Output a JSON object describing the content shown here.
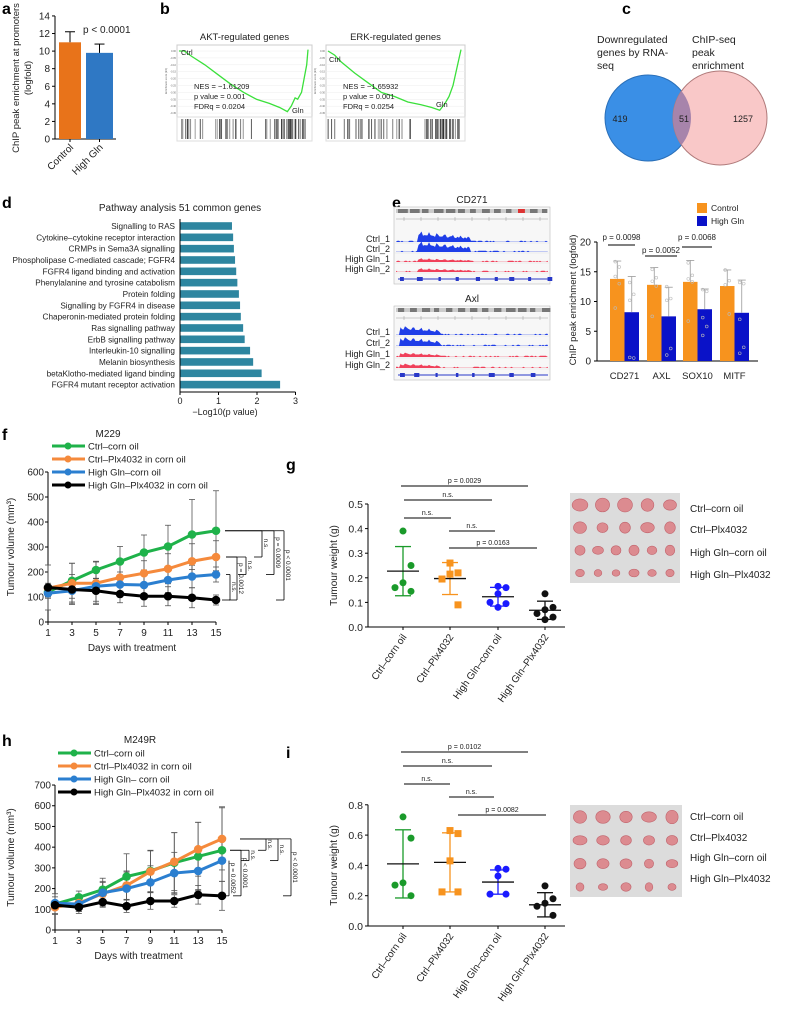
{
  "panel_labels": {
    "a": "a",
    "b": "b",
    "c": "c",
    "d": "d",
    "e": "e",
    "f": "f",
    "g": "g",
    "h": "h",
    "i": "i"
  },
  "colors": {
    "orange": "#e8731a",
    "blue": "#2f78c4",
    "teal": "#2e86a0",
    "gsea_green": "#3be03b",
    "ctrl_orange": "#f7931e",
    "gln_blue": "#0a12c8",
    "venn_blue": "#3a8fe6",
    "venn_pink": "#f9c8c8",
    "venn_overlap": "#a784ab"
  },
  "panel_e_tracks": {
    "cd271_title": "CD271",
    "axl_title": "Axl",
    "rows": [
      "Ctrl_1",
      "Ctrl_2",
      "High Gln_1",
      "High Gln_2"
    ]
  },
  "chart_data": [
    {
      "type": "bar",
      "categories": [
        "Control",
        "High Gln"
      ],
      "values": [
        11.0,
        9.8
      ],
      "errors": [
        1.2,
        1.0
      ],
      "colors": [
        "#e8731a",
        "#2f78c4"
      ],
      "ylabel_line1": "ChIP peak enrichment at promoters",
      "ylabel_line2": "(logfold)",
      "ylim": [
        0,
        14
      ],
      "yticks": [
        "0",
        "2",
        "4",
        "6",
        "8",
        "10",
        "12",
        "14"
      ],
      "annotation": "p < 0.0001"
    },
    {
      "type": "line",
      "title": "AKT-regulated genes",
      "ylabel": "Enrichment score (ES)",
      "start_label": "Ctrl",
      "end_label": "Gln",
      "nes": "NES = −1.61209",
      "pvalue": "p value = 0.001",
      "fdr": "FDRq = 0.0204",
      "yticks": [
        "0.00",
        "-0.05",
        "-0.10",
        "-0.15",
        "-0.20",
        "-0.25",
        "-0.30",
        "-0.35",
        "-0.40",
        "-0.45"
      ],
      "x": [
        0,
        0.04,
        0.1,
        0.2,
        0.3,
        0.4,
        0.5,
        0.6,
        0.7,
        0.78,
        0.84,
        0.87,
        0.9,
        0.92,
        0.95,
        0.97,
        0.99,
        1
      ],
      "es": [
        0,
        0,
        -0.04,
        -0.1,
        -0.17,
        -0.24,
        -0.3,
        -0.35,
        -0.38,
        -0.41,
        -0.44,
        -0.4,
        -0.34,
        -0.35,
        -0.3,
        -0.2,
        -0.1,
        0.01
      ]
    },
    {
      "type": "line",
      "title": "ERK-regulated genes",
      "ylabel": "Enrichment score (ES)",
      "start_label": "Ctrl",
      "end_label": "Gln",
      "nes": "NES = −1.65932",
      "pvalue": "p value = 0.001",
      "fdr": "FDRq = 0.0254",
      "yticks": [
        "0.00",
        "-0.05",
        "-0.10",
        "-0.15",
        "-0.20",
        "-0.25",
        "-0.30",
        "-0.35",
        "-0.40",
        "-0.45"
      ],
      "x": [
        0,
        0.05,
        0.1,
        0.2,
        0.3,
        0.4,
        0.5,
        0.6,
        0.7,
        0.78,
        0.84,
        0.88,
        0.91,
        0.94,
        0.97,
        1
      ],
      "es": [
        0,
        -0.03,
        -0.08,
        -0.16,
        -0.23,
        -0.3,
        -0.33,
        -0.37,
        -0.39,
        -0.41,
        -0.43,
        -0.38,
        -0.33,
        -0.25,
        -0.12,
        0.01
      ]
    },
    {
      "type": "venn",
      "sets": [
        "Downregulated genes by RNA-seq",
        "ChIP-seq peak enrichment"
      ],
      "set1_lines": [
        "Downregulated",
        "genes by",
        "RNA-seq"
      ],
      "set2_lines": [
        "ChIP-seq",
        "peak",
        "enrichment"
      ],
      "only_set1": "419",
      "overlap": "51",
      "only_set2": "1257"
    },
    {
      "type": "bar",
      "orientation": "horizontal",
      "title": "Pathway analysis 51 common genes",
      "xlabel": "−Log10(p value)",
      "xlim": [
        0,
        3
      ],
      "xticks": [
        "0",
        "1",
        "2",
        "3"
      ],
      "categories": [
        "Signalling to RAS",
        "Cytokine–cytokine receptor interaction",
        "CRMPs in Sema3A signalling",
        "Phospholipase C-mediated cascade; FGFR4",
        "FGFR4 ligand binding and activation",
        "Phenylalanine and tyrosine catabolism",
        "Protein folding",
        "Signalling by FGFR4 in disease",
        "Chaperonin-mediated protein folding",
        "Ras signalling pathway",
        "ErbB signalling pathway",
        "Interleukin-10 signalling",
        "Melanin biosynthesis",
        "betaKlotho-mediated ligand binding",
        "FGFR4 mutant receptor activation"
      ],
      "values": [
        1.35,
        1.38,
        1.4,
        1.43,
        1.46,
        1.49,
        1.53,
        1.56,
        1.58,
        1.64,
        1.68,
        1.82,
        1.9,
        2.12,
        2.6
      ]
    },
    {
      "type": "bar",
      "categories": [
        "CD271",
        "AXL",
        "SOX10",
        "MITF"
      ],
      "ylabel": "ChIP peak enrichment (logfold)",
      "ylim": [
        0,
        20
      ],
      "yticks": [
        "0",
        "5",
        "10",
        "15",
        "20"
      ],
      "series": [
        {
          "name": "Control",
          "color": "#f7931e",
          "values": [
            13.8,
            12.8,
            13.3,
            12.6
          ],
          "errors": [
            3.0,
            2.9,
            3.6,
            2.7
          ],
          "points": [
            [
              16.7,
              15.8,
              14.2,
              13.0,
              8.9
            ],
            [
              15.4,
              14.0,
              13.4,
              12.6,
              7.5
            ],
            [
              16.5,
              14.4,
              13.8,
              13.3,
              6.7
            ],
            [
              15.3,
              13.5,
              12.8,
              7.9
            ]
          ]
        },
        {
          "name": "High Gln",
          "color": "#0a12c8",
          "values": [
            8.2,
            7.5,
            8.7,
            8.1
          ],
          "errors": [
            6.0,
            4.9,
            3.4,
            5.5
          ],
          "points": [
            [
              13.2,
              11.2,
              10.2,
              0.5,
              0.6
            ],
            [
              12.5,
              10.5,
              10.2,
              2.1,
              1.0
            ],
            [
              12.0,
              11.7,
              7.3,
              5.8,
              4.3
            ],
            [
              13.2,
              13.0,
              7.0,
              2.3,
              1.3
            ]
          ]
        }
      ],
      "comparisons": [
        {
          "category": "CD271",
          "label": "p = 0.0098"
        },
        {
          "category": "AXL",
          "label": "p = 0.0052"
        },
        {
          "category": "SOX10",
          "label": "p = 0.0068"
        }
      ]
    },
    {
      "type": "line",
      "title": "M229",
      "xlabel": "Days with treatment",
      "ylabel": "Tumour volume (mm³)",
      "ylim": [
        0,
        600
      ],
      "yticks": [
        "0",
        "100",
        "200",
        "300",
        "400",
        "500",
        "600"
      ],
      "x": [
        1,
        3,
        5,
        7,
        9,
        11,
        13,
        15
      ],
      "xticks": [
        "1",
        "3",
        "5",
        "7",
        "9",
        "11",
        "13",
        "15"
      ],
      "series": [
        {
          "name": "Ctrl–corn oil",
          "color": "#1fb24a",
          "values": [
            120,
            165,
            208,
            242,
            278,
            302,
            350,
            365
          ],
          "errors": [
            20,
            70,
            35,
            60,
            70,
            85,
            140,
            160
          ]
        },
        {
          "name": "Ctrl–Plx4032 in corn oil",
          "color": "#f58a3c",
          "values": [
            135,
            155,
            155,
            178,
            195,
            213,
            243,
            260
          ],
          "errors": [
            20,
            80,
            85,
            60,
            50,
            60,
            70,
            65
          ]
        },
        {
          "name": "High Gln–corn oil",
          "color": "#2b7fd0",
          "values": [
            115,
            125,
            143,
            150,
            148,
            168,
            182,
            190
          ],
          "errors": [
            20,
            45,
            60,
            50,
            45,
            50,
            45,
            30
          ]
        },
        {
          "name": "High Gln–Plx4032 in corn oil",
          "color": "#000000",
          "values": [
            138,
            130,
            125,
            112,
            103,
            103,
            97,
            88
          ],
          "errors": [
            90,
            60,
            50,
            35,
            40,
            38,
            40,
            20
          ]
        }
      ],
      "comparisons": [
        {
          "a": 0,
          "b": 1,
          "label": "n.s."
        },
        {
          "a": 0,
          "b": 2,
          "label": "p = 0.0009"
        },
        {
          "a": 0,
          "b": 3,
          "label": "p < 0.0001"
        },
        {
          "a": 1,
          "b": 2,
          "label": "n.s."
        },
        {
          "a": 1,
          "b": 3,
          "label": "p = 0.0012"
        },
        {
          "a": 2,
          "b": 3,
          "label": "n.s."
        }
      ]
    },
    {
      "type": "scatter",
      "ylabel": "Tumour weight (g)",
      "ylim": [
        0,
        0.5
      ],
      "yticks": [
        "0.0",
        "0.1",
        "0.2",
        "0.3",
        "0.4",
        "0.5"
      ],
      "categories": [
        "Ctrl–corn oil",
        "Ctrl–Plx4032",
        "High Gln–corn oil",
        "High Gln–Plx4032"
      ],
      "colors": [
        "#1a9a2a",
        "#f7931e",
        "#1a1aff",
        "#111111"
      ],
      "markers": [
        "circle",
        "square",
        "circle",
        "circle"
      ],
      "points": [
        [
          0.39,
          0.25,
          0.18,
          0.16,
          0.145
        ],
        [
          0.26,
          0.22,
          0.215,
          0.195,
          0.09
        ],
        [
          0.165,
          0.16,
          0.135,
          0.1,
          0.095,
          0.08
        ],
        [
          0.135,
          0.08,
          0.07,
          0.055,
          0.04,
          0.03
        ]
      ],
      "means": [
        0.227,
        0.197,
        0.123,
        0.068
      ],
      "sd": [
        0.1,
        0.065,
        0.038,
        0.037
      ],
      "comparisons": [
        {
          "a": 0,
          "b": 3,
          "label": "p = 0.0029"
        },
        {
          "a": 0,
          "b": 2,
          "label": "n.s."
        },
        {
          "a": 0,
          "b": 1,
          "label": "n.s."
        },
        {
          "a": 1,
          "b": 2,
          "label": "n.s."
        },
        {
          "a": 1,
          "b": 3,
          "label": "p = 0.0163"
        }
      ],
      "photo_labels": [
        "Ctrl–corn oil",
        "Ctrl–Plx4032",
        "High Gln–corn oil",
        "High Gln–Plx4032"
      ]
    },
    {
      "type": "line",
      "title": "M249R",
      "xlabel": "Days with treatment",
      "ylabel": "Tumour volume (mm³)",
      "ylim": [
        0,
        700
      ],
      "yticks": [
        "0",
        "100",
        "200",
        "300",
        "400",
        "500",
        "600",
        "700"
      ],
      "x": [
        1,
        3,
        5,
        7,
        9,
        11,
        13,
        15
      ],
      "xticks": [
        "1",
        "3",
        "5",
        "7",
        "9",
        "11",
        "13",
        "15"
      ],
      "series": [
        {
          "name": "Ctrl–corn oil",
          "color": "#1fb24a",
          "values": [
            125,
            158,
            195,
            258,
            285,
            325,
            355,
            385
          ],
          "errors": [
            50,
            30,
            55,
            110,
            100,
            145,
            165,
            210
          ]
        },
        {
          "name": "Ctrl–Plx4032 in corn oil",
          "color": "#f58a3c",
          "values": [
            110,
            130,
            175,
            215,
            282,
            330,
            390,
            440
          ],
          "errors": [
            30,
            40,
            60,
            70,
            100,
            140,
            130,
            150
          ]
        },
        {
          "name": "High Gln– corn oil",
          "color": "#2b7fd0",
          "values": [
            130,
            125,
            180,
            200,
            230,
            275,
            285,
            335
          ],
          "errors": [
            30,
            35,
            50,
            80,
            80,
            100,
            90,
            100
          ]
        },
        {
          "name": "High Gln–Plx4032 in corn oil",
          "color": "#000000",
          "values": [
            120,
            110,
            135,
            115,
            140,
            140,
            170,
            165
          ],
          "errors": [
            20,
            30,
            25,
            30,
            40,
            30,
            45,
            70
          ]
        }
      ],
      "comparisons": [
        {
          "a": 1,
          "b": 0,
          "label": "n.s."
        },
        {
          "a": 1,
          "b": 2,
          "label": "n.s."
        },
        {
          "a": 1,
          "b": 3,
          "label": "p < 0.0001"
        },
        {
          "a": 0,
          "b": 2,
          "label": "n.s."
        },
        {
          "a": 0,
          "b": 3,
          "label": "p < 0.0001"
        },
        {
          "a": 2,
          "b": 3,
          "label": "p = 0.0052"
        }
      ]
    },
    {
      "type": "scatter",
      "ylabel": "Tumour weight (g)",
      "ylim": [
        0,
        0.8
      ],
      "yticks": [
        "0.0",
        "0.2",
        "0.4",
        "0.6",
        "0.8"
      ],
      "categories": [
        "Ctrl–corn oil",
        "Ctrl–Plx4032",
        "High Gln–corn oil",
        "High Gln–Plx4032"
      ],
      "colors": [
        "#1a9a2a",
        "#f7931e",
        "#1a1aff",
        "#111111"
      ],
      "markers": [
        "circle",
        "square",
        "circle",
        "circle"
      ],
      "points": [
        [
          0.72,
          0.58,
          0.285,
          0.27,
          0.2
        ],
        [
          0.63,
          0.61,
          0.43,
          0.225,
          0.225
        ],
        [
          0.38,
          0.375,
          0.33,
          0.21,
          0.21
        ],
        [
          0.265,
          0.18,
          0.15,
          0.13,
          0.07
        ]
      ],
      "means": [
        0.41,
        0.42,
        0.29,
        0.14
      ],
      "sd": [
        0.225,
        0.195,
        0.08,
        0.08
      ],
      "comparisons": [
        {
          "a": 0,
          "b": 3,
          "label": "p = 0.0102"
        },
        {
          "a": 0,
          "b": 2,
          "label": "n.s."
        },
        {
          "a": 0,
          "b": 1,
          "label": "n.s."
        },
        {
          "a": 1,
          "b": 2,
          "label": "n.s."
        },
        {
          "a": 1,
          "b": 3,
          "label": "p = 0.0082"
        }
      ],
      "photo_labels": [
        "Ctrl–corn oil",
        "Ctrl–Plx4032",
        "High Gln–corn oil",
        "High Gln–Plx4032"
      ]
    }
  ]
}
